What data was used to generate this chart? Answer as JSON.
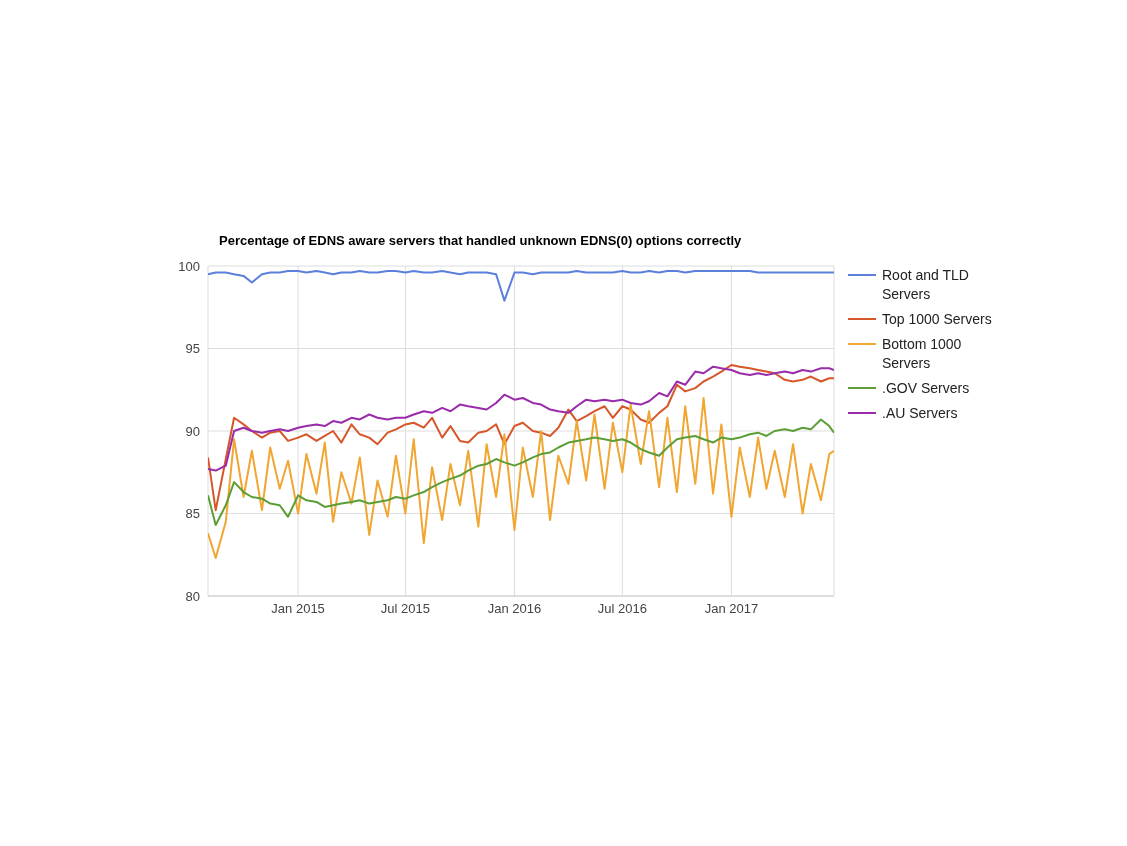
{
  "chart_data": {
    "type": "line",
    "title": "Percentage of EDNS aware servers that handled unknown EDNS(0) options correctly",
    "x": [
      "2014-08-02",
      "2014-08-15",
      "2014-09-01",
      "2014-09-15",
      "2014-10-01",
      "2014-10-15",
      "2014-11-01",
      "2014-11-15",
      "2014-12-01",
      "2014-12-15",
      "2015-01-01",
      "2015-01-15",
      "2015-02-01",
      "2015-02-15",
      "2015-03-01",
      "2015-03-15",
      "2015-04-01",
      "2015-04-15",
      "2015-05-01",
      "2015-05-15",
      "2015-06-01",
      "2015-06-15",
      "2015-07-01",
      "2015-07-15",
      "2015-08-01",
      "2015-08-15",
      "2015-09-01",
      "2015-09-15",
      "2015-10-01",
      "2015-10-15",
      "2015-11-01",
      "2015-11-15",
      "2015-12-01",
      "2015-12-15",
      "2016-01-01",
      "2016-01-15",
      "2016-02-01",
      "2016-02-15",
      "2016-03-01",
      "2016-03-15",
      "2016-04-01",
      "2016-04-15",
      "2016-05-01",
      "2016-05-15",
      "2016-06-01",
      "2016-06-15",
      "2016-07-01",
      "2016-07-15",
      "2016-08-01",
      "2016-08-15",
      "2016-09-01",
      "2016-09-15",
      "2016-10-01",
      "2016-10-15",
      "2016-11-01",
      "2016-11-15",
      "2016-12-01",
      "2016-12-15",
      "2017-01-01",
      "2017-01-15",
      "2017-02-01",
      "2017-02-15",
      "2017-03-01",
      "2017-03-15",
      "2017-04-01",
      "2017-04-15",
      "2017-05-01",
      "2017-05-15",
      "2017-06-01",
      "2017-06-15",
      "2017-06-23"
    ],
    "series": [
      {
        "name": "Root and TLD Servers",
        "color": "#5b7fdb",
        "values": [
          99.5,
          99.6,
          99.6,
          99.5,
          99.4,
          99.0,
          99.5,
          99.6,
          99.6,
          99.7,
          99.7,
          99.6,
          99.7,
          99.6,
          99.5,
          99.6,
          99.6,
          99.7,
          99.6,
          99.6,
          99.7,
          99.7,
          99.6,
          99.7,
          99.6,
          99.6,
          99.7,
          99.6,
          99.5,
          99.6,
          99.6,
          99.6,
          99.5,
          97.9,
          99.6,
          99.6,
          99.5,
          99.6,
          99.6,
          99.6,
          99.6,
          99.7,
          99.6,
          99.6,
          99.6,
          99.6,
          99.7,
          99.6,
          99.6,
          99.7,
          99.6,
          99.7,
          99.7,
          99.6,
          99.7,
          99.7,
          99.7,
          99.7,
          99.7,
          99.7,
          99.7,
          99.6,
          99.6,
          99.6,
          99.6,
          99.6,
          99.6,
          99.6,
          99.6,
          99.6,
          99.6
        ]
      },
      {
        "name": "Top 1000 Servers",
        "color": "#d6572a",
        "values": [
          88.4,
          85.2,
          88.3,
          90.8,
          90.4,
          90.0,
          89.6,
          89.9,
          90.0,
          89.4,
          89.6,
          89.8,
          89.4,
          89.7,
          90.0,
          89.3,
          90.4,
          89.8,
          89.6,
          89.2,
          89.9,
          90.1,
          90.4,
          90.5,
          90.2,
          90.8,
          89.6,
          90.3,
          89.4,
          89.3,
          89.9,
          90.0,
          90.4,
          89.2,
          90.3,
          90.5,
          90.0,
          89.9,
          89.7,
          90.2,
          91.3,
          90.6,
          90.9,
          91.2,
          91.5,
          90.8,
          91.5,
          91.3,
          90.7,
          90.5,
          91.1,
          91.5,
          92.8,
          92.4,
          92.6,
          93.0,
          93.3,
          93.6,
          94.0,
          93.9,
          93.8,
          93.7,
          93.6,
          93.5,
          93.1,
          93.0,
          93.1,
          93.3,
          93.0,
          93.2,
          93.2
        ]
      },
      {
        "name": "Bottom 1000 Servers",
        "color": "#f0a630",
        "values": [
          83.8,
          82.3,
          84.5,
          89.5,
          86.0,
          88.8,
          85.2,
          89.0,
          86.5,
          88.2,
          85.0,
          88.6,
          86.2,
          89.3,
          84.5,
          87.5,
          85.6,
          88.4,
          83.7,
          87.0,
          84.8,
          88.5,
          85.0,
          89.5,
          83.2,
          87.8,
          84.6,
          88.0,
          85.5,
          88.8,
          84.2,
          89.2,
          86.0,
          89.8,
          84.0,
          89.0,
          86.0,
          90.0,
          84.6,
          88.5,
          86.8,
          90.6,
          87.0,
          91.0,
          86.5,
          90.5,
          87.5,
          91.6,
          88.0,
          91.2,
          86.6,
          90.8,
          86.3,
          91.5,
          86.8,
          92.0,
          86.2,
          90.4,
          84.8,
          89.0,
          86.0,
          89.6,
          86.5,
          88.8,
          86.0,
          89.2,
          85.0,
          88.0,
          85.8,
          88.6,
          88.8
        ]
      },
      {
        "name": ".GOV Servers",
        "color": "#5c9e35",
        "values": [
          86.1,
          84.3,
          85.5,
          86.9,
          86.3,
          86.0,
          85.9,
          85.6,
          85.5,
          84.8,
          86.1,
          85.8,
          85.7,
          85.4,
          85.5,
          85.6,
          85.7,
          85.8,
          85.6,
          85.7,
          85.8,
          86.0,
          85.9,
          86.1,
          86.3,
          86.6,
          86.9,
          87.1,
          87.3,
          87.6,
          87.9,
          88.0,
          88.3,
          88.1,
          87.9,
          88.1,
          88.4,
          88.6,
          88.7,
          89.0,
          89.3,
          89.4,
          89.5,
          89.6,
          89.5,
          89.4,
          89.5,
          89.3,
          88.9,
          88.7,
          88.5,
          89.0,
          89.5,
          89.6,
          89.7,
          89.5,
          89.3,
          89.6,
          89.5,
          89.6,
          89.8,
          89.9,
          89.7,
          90.0,
          90.1,
          90.0,
          90.2,
          90.1,
          90.7,
          90.3,
          89.9
        ]
      },
      {
        "name": ".AU Servers",
        "color": "#9a2bab",
        "values": [
          87.7,
          87.6,
          87.9,
          90.0,
          90.2,
          90.0,
          89.9,
          90.0,
          90.1,
          90.0,
          90.2,
          90.3,
          90.4,
          90.3,
          90.6,
          90.5,
          90.8,
          90.7,
          91.0,
          90.8,
          90.7,
          90.8,
          90.8,
          91.0,
          91.2,
          91.1,
          91.4,
          91.2,
          91.6,
          91.5,
          91.4,
          91.3,
          91.7,
          92.2,
          91.9,
          92.0,
          91.7,
          91.6,
          91.3,
          91.2,
          91.1,
          91.5,
          91.9,
          91.8,
          91.9,
          91.8,
          91.9,
          91.7,
          91.6,
          91.8,
          92.3,
          92.1,
          93.0,
          92.8,
          93.6,
          93.5,
          93.9,
          93.8,
          93.7,
          93.5,
          93.4,
          93.5,
          93.4,
          93.5,
          93.6,
          93.5,
          93.7,
          93.6,
          93.8,
          93.8,
          93.7
        ]
      }
    ],
    "xlim": [
      "2014-08-02",
      "2017-06-23"
    ],
    "xticks": [
      {
        "value": "2015-01-01",
        "label": "Jan 2015"
      },
      {
        "value": "2015-07-01",
        "label": "Jul 2015"
      },
      {
        "value": "2016-01-01",
        "label": "Jan 2016"
      },
      {
        "value": "2016-07-01",
        "label": "Jul 2016"
      },
      {
        "value": "2017-01-01",
        "label": "Jan 2017"
      }
    ],
    "ylim": [
      80,
      100
    ],
    "yticks": [
      80,
      85,
      90,
      95,
      100
    ],
    "grid": true,
    "legend": "right",
    "marker": "none",
    "line_style": "solid"
  }
}
